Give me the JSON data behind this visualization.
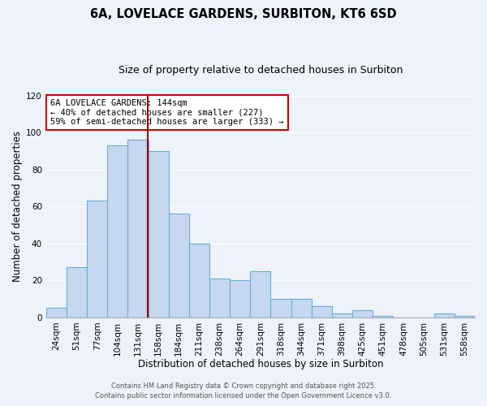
{
  "title": "6A, LOVELACE GARDENS, SURBITON, KT6 6SD",
  "subtitle": "Size of property relative to detached houses in Surbiton",
  "xlabel": "Distribution of detached houses by size in Surbiton",
  "ylabel": "Number of detached properties",
  "categories": [
    "24sqm",
    "51sqm",
    "77sqm",
    "104sqm",
    "131sqm",
    "158sqm",
    "184sqm",
    "211sqm",
    "238sqm",
    "264sqm",
    "291sqm",
    "318sqm",
    "344sqm",
    "371sqm",
    "398sqm",
    "425sqm",
    "451sqm",
    "478sqm",
    "505sqm",
    "531sqm",
    "558sqm"
  ],
  "values": [
    5,
    27,
    63,
    93,
    96,
    90,
    56,
    40,
    21,
    20,
    25,
    10,
    10,
    6,
    2,
    4,
    1,
    0,
    0,
    2,
    1
  ],
  "bar_color": "#c5d8ef",
  "bar_edge_color": "#6baed6",
  "ylim": [
    0,
    120
  ],
  "yticks": [
    0,
    20,
    40,
    60,
    80,
    100,
    120
  ],
  "annotation_title": "6A LOVELACE GARDENS: 144sqm",
  "annotation_line1": "← 40% of detached houses are smaller (227)",
  "annotation_line2": "59% of semi-detached houses are larger (333) →",
  "annotation_box_facecolor": "#ffffff",
  "annotation_box_edgecolor": "#cc0000",
  "vline_color": "#990000",
  "footer1": "Contains HM Land Registry data © Crown copyright and database right 2025.",
  "footer2": "Contains public sector information licensed under the Open Government Licence v3.0.",
  "bg_color": "#eef2fa",
  "grid_color": "#ffffff",
  "title_fontsize": 10.5,
  "subtitle_fontsize": 9,
  "annotation_fontsize": 7.5,
  "axis_label_fontsize": 8.5,
  "tick_fontsize": 7.5,
  "footer_fontsize": 6
}
